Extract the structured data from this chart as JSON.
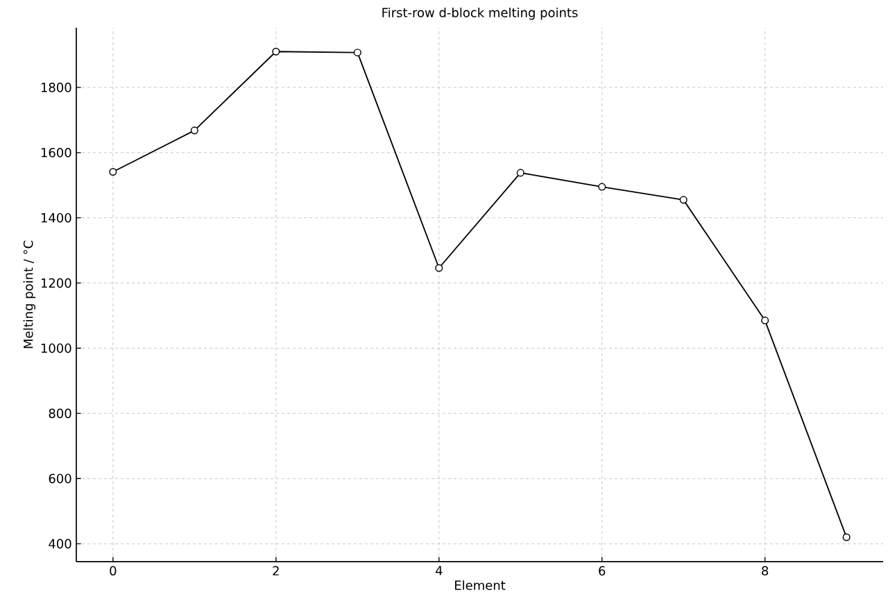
{
  "chart_data": {
    "type": "line",
    "title": "First-row d-block melting points",
    "xlabel": "Element",
    "ylabel": "Melting point / °C",
    "x": [
      0,
      1,
      2,
      3,
      4,
      5,
      6,
      7,
      8,
      9
    ],
    "series": [
      {
        "color": "#000000",
        "values": [
          1541,
          1668,
          1910,
          1907,
          1246,
          1538,
          1495,
          1455,
          1085,
          420
        ]
      }
    ],
    "xlim": [
      -0.45,
      9.45
    ],
    "ylim": [
      345,
      1983
    ],
    "xticks": [
      0,
      2,
      4,
      6,
      8
    ],
    "yticks": [
      400,
      600,
      800,
      1000,
      1200,
      1400,
      1600,
      1800
    ],
    "grid": true,
    "marker": "circle",
    "line_style": "solid"
  }
}
